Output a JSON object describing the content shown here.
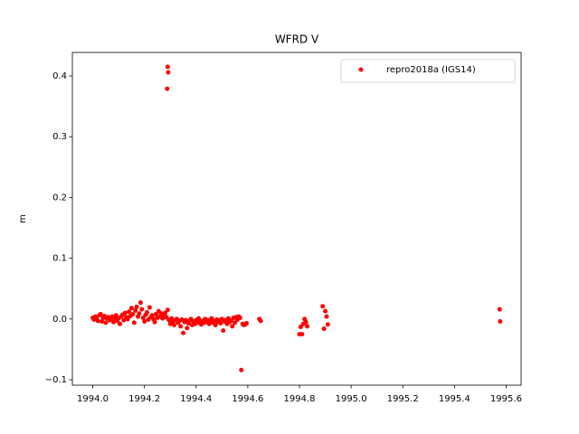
{
  "chart_data": {
    "type": "scatter",
    "title": "WFRD V",
    "y_label": "m",
    "x": [
      1994.0,
      1994.005,
      1994.01,
      1994.015,
      1994.02,
      1994.025,
      1994.03,
      1994.035,
      1994.04,
      1994.045,
      1994.05,
      1994.055,
      1994.06,
      1994.065,
      1994.07,
      1994.075,
      1994.08,
      1994.085,
      1994.09,
      1994.095,
      1994.1,
      1994.105,
      1994.11,
      1994.115,
      1994.12,
      1994.125,
      1994.13,
      1994.135,
      1994.14,
      1994.145,
      1994.15,
      1994.155,
      1994.16,
      1994.165,
      1994.17,
      1994.175,
      1994.18,
      1994.185,
      1994.19,
      1994.195,
      1994.2,
      1994.205,
      1994.21,
      1994.215,
      1994.22,
      1994.225,
      1994.23,
      1994.235,
      1994.24,
      1994.245,
      1994.25,
      1994.255,
      1994.26,
      1994.265,
      1994.27,
      1994.275,
      1994.28,
      1994.285,
      1994.29,
      1994.295,
      1994.3,
      1994.305,
      1994.31,
      1994.315,
      1994.32,
      1994.325,
      1994.33,
      1994.335,
      1994.34,
      1994.345,
      1994.35,
      1994.355,
      1994.36,
      1994.365,
      1994.37,
      1994.375,
      1994.38,
      1994.385,
      1994.39,
      1994.395,
      1994.4,
      1994.405,
      1994.41,
      1994.415,
      1994.42,
      1994.425,
      1994.43,
      1994.435,
      1994.44,
      1994.445,
      1994.45,
      1994.455,
      1994.46,
      1994.465,
      1994.47,
      1994.475,
      1994.48,
      1994.485,
      1994.49,
      1994.495,
      1994.5,
      1994.505,
      1994.51,
      1994.515,
      1994.52,
      1994.525,
      1994.53,
      1994.535,
      1994.54,
      1994.545,
      1994.55,
      1994.555,
      1994.56,
      1994.565,
      1994.57,
      1994.575,
      1994.58,
      1994.585,
      1994.59,
      1994.595,
      1994.645,
      1994.65,
      1994.8,
      1994.805,
      1994.81,
      1994.815,
      1994.82,
      1994.825,
      1994.83,
      1994.89,
      1994.895,
      1994.9,
      1994.905,
      1994.91,
      1994.288,
      1994.29,
      1994.292,
      1995.575,
      1995.577
    ],
    "series": [
      {
        "name": "repro2018a (IGS14)",
        "color": "#ff0000",
        "values": [
          0.002,
          -0.001,
          0.004,
          0.0,
          -0.003,
          0.006,
          0.008,
          -0.004,
          0.002,
          0.005,
          -0.006,
          0.001,
          0.003,
          -0.002,
          0.0,
          0.004,
          -0.005,
          0.002,
          0.006,
          -0.003,
          0.001,
          -0.008,
          0.004,
          0.007,
          -0.002,
          0.01,
          0.003,
          0.0,
          0.012,
          0.005,
          0.018,
          0.008,
          -0.006,
          0.014,
          0.02,
          0.004,
          0.009,
          0.027,
          0.016,
          0.002,
          -0.004,
          0.007,
          0.011,
          -0.001,
          0.019,
          0.003,
          0.006,
          0.0,
          -0.005,
          0.008,
          0.002,
          0.013,
          0.004,
          0.009,
          0.001,
          0.006,
          0.01,
          0.003,
          0.015,
          -0.002,
          -0.008,
          0.001,
          -0.004,
          -0.01,
          -0.002,
          0.0,
          -0.006,
          -0.003,
          -0.012,
          -0.001,
          -0.023,
          -0.005,
          -0.002,
          -0.015,
          -0.007,
          -0.003,
          0.0,
          -0.01,
          -0.004,
          -0.008,
          -0.002,
          -0.006,
          0.001,
          -0.004,
          -0.009,
          -0.003,
          -0.006,
          0.0,
          -0.005,
          -0.002,
          -0.008,
          -0.004,
          0.001,
          -0.006,
          -0.003,
          -0.01,
          -0.001,
          -0.005,
          -0.002,
          -0.007,
          0.0,
          -0.019,
          -0.004,
          -0.002,
          -0.008,
          0.001,
          -0.005,
          -0.003,
          -0.012,
          0.002,
          -0.006,
          0.003,
          -0.001,
          0.004,
          0.002,
          -0.084,
          -0.008,
          -0.01,
          -0.009,
          -0.007,
          0.0,
          -0.003,
          -0.025,
          -0.013,
          -0.025,
          -0.008,
          0.0,
          -0.005,
          -0.012,
          0.021,
          -0.016,
          0.013,
          0.004,
          -0.009,
          0.379,
          0.415,
          0.406,
          0.016,
          -0.004
        ]
      }
    ],
    "xlim": [
      1993.921,
      1995.658
    ],
    "ylim": [
      -0.1089,
      0.4387
    ],
    "xticks": [
      {
        "value": 1994.0,
        "label": "1994.0"
      },
      {
        "value": 1994.2,
        "label": "1994.2"
      },
      {
        "value": 1994.4,
        "label": "1994.4"
      },
      {
        "value": 1994.6,
        "label": "1994.6"
      },
      {
        "value": 1994.8,
        "label": "1994.8"
      },
      {
        "value": 1995.0,
        "label": "1995.0"
      },
      {
        "value": 1995.2,
        "label": "1995.2"
      },
      {
        "value": 1995.4,
        "label": "1995.4"
      },
      {
        "value": 1995.6,
        "label": "1995.6"
      }
    ],
    "yticks": [
      {
        "value": -0.1,
        "label": "−0.1"
      },
      {
        "value": 0.0,
        "label": "0.0"
      },
      0.1,
      0.2,
      0.3,
      0.4
    ],
    "legend": "upper right"
  }
}
